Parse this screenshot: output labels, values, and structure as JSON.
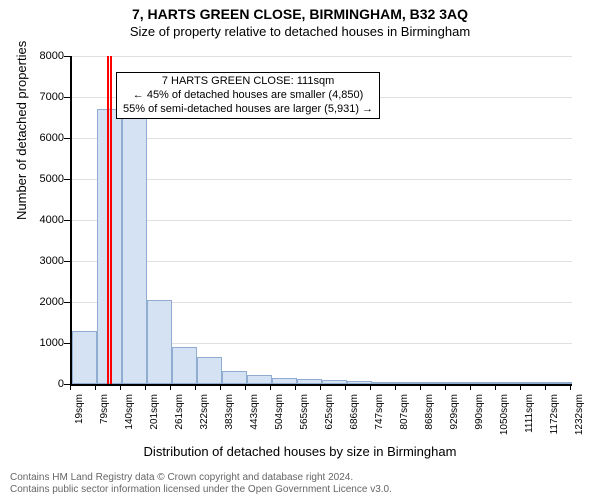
{
  "header": {
    "title": "7, HARTS GREEN CLOSE, BIRMINGHAM, B32 3AQ",
    "subtitle": "Size of property relative to detached houses in Birmingham"
  },
  "chart": {
    "type": "histogram",
    "ylabel": "Number of detached properties",
    "xlabel": "Distribution of detached houses by size in Birmingham",
    "ylim": [
      0,
      8000
    ],
    "ytick_step": 1000,
    "background_color": "#ffffff",
    "grid_color": "#e0e0e0",
    "bar_fill": "#d4e2f4",
    "bar_border": "#90add1",
    "marker_color": "#ff0000",
    "marker_value_sqm": 111,
    "x_labels": [
      "19sqm",
      "79sqm",
      "140sqm",
      "201sqm",
      "261sqm",
      "322sqm",
      "383sqm",
      "443sqm",
      "504sqm",
      "565sqm",
      "625sqm",
      "686sqm",
      "747sqm",
      "807sqm",
      "868sqm",
      "929sqm",
      "990sqm",
      "1050sqm",
      "1111sqm",
      "1172sqm",
      "1232sqm"
    ],
    "bars": [
      1300,
      6700,
      6700,
      2050,
      900,
      650,
      320,
      220,
      150,
      120,
      100,
      80,
      60,
      50,
      40,
      30,
      20,
      10,
      10,
      10
    ],
    "annotation": {
      "line1": "7 HARTS GREEN CLOSE: 111sqm",
      "line2": "← 45% of detached houses are smaller (4,850)",
      "line3": "55% of semi-detached houses are larger (5,931) →"
    }
  },
  "copyright": {
    "line1": "Contains HM Land Registry data © Crown copyright and database right 2024.",
    "line2": "Contains public sector information licensed under the Open Government Licence v3.0."
  }
}
